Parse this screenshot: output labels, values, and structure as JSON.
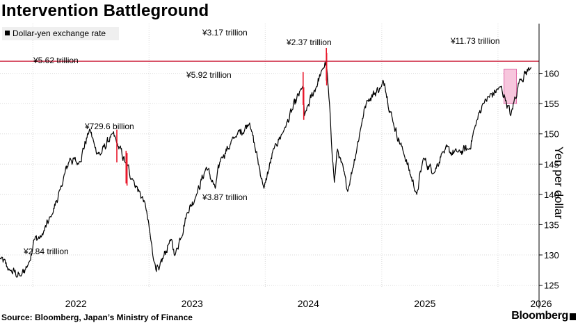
{
  "title": "Intervention Battleground",
  "legend_label": "Dollar-yen exchange rate",
  "source": "Source: Bloomberg, Japan’s Ministry of Finance",
  "brand": "Bloomberg",
  "colors": {
    "line": "#000000",
    "reference_line": "#c8102e",
    "intervention": "#e8192c",
    "highlight_fill": "#f7c6dd",
    "highlight_stroke": "#e06ba8",
    "grid": "#d9d9d9"
  },
  "chart_data": {
    "type": "line",
    "title": "Intervention Battleground",
    "ylabel": "Yen per dollar",
    "ylim": [
      123,
      165
    ],
    "y_ticks": [
      125,
      130,
      135,
      140,
      145,
      150,
      155,
      160
    ],
    "x_tick_labels": [
      "2022",
      "2023",
      "2024",
      "2025",
      "2026"
    ],
    "x_tick_dates": [
      "2022-01-01",
      "2023-01-01",
      "2024-01-01",
      "2025-01-01",
      "2026-01-01"
    ],
    "xlim": [
      "2021-09-20",
      "2026-05-10"
    ],
    "legend": "Dollar-yen exchange rate",
    "legend_position": "top-left",
    "reference_line": {
      "y": 162
    },
    "series": [
      {
        "name": "Dollar-yen exchange rate",
        "x": [
          "2021-09-20",
          "2021-10-20",
          "2021-11-25",
          "2021-12-20",
          "2022-01-04",
          "2022-01-28",
          "2022-03-01",
          "2022-03-28",
          "2022-04-28",
          "2022-05-24",
          "2022-06-29",
          "2022-07-14",
          "2022-08-01",
          "2022-09-07",
          "2022-09-22",
          "2022-10-21",
          "2022-11-11",
          "2022-12-20",
          "2023-01-16",
          "2023-02-01",
          "2023-03-08",
          "2023-03-24",
          "2023-05-01",
          "2023-05-30",
          "2023-06-30",
          "2023-07-28",
          "2023-08-15",
          "2023-09-29",
          "2023-11-13",
          "2023-12-28",
          "2024-01-31",
          "2024-02-28",
          "2024-04-29",
          "2024-05-03",
          "2024-06-30",
          "2024-07-11",
          "2024-08-05",
          "2024-08-15",
          "2024-09-16",
          "2024-10-31",
          "2024-11-15",
          "2024-12-31",
          "2025-01-10",
          "2025-02-05",
          "2025-03-10",
          "2025-04-21",
          "2025-05-12",
          "2025-06-13",
          "2025-07-10",
          "2025-08-29",
          "2025-10-03",
          "2025-10-20",
          "2025-11-14",
          "2026-01-09",
          "2026-01-23",
          "2026-02-10",
          "2026-03-10",
          "2026-04-15"
        ],
        "values": [
          129.5,
          127.5,
          126.5,
          128.8,
          132.5,
          133.0,
          136.5,
          140.8,
          146.0,
          145.0,
          150.8,
          148.0,
          146.5,
          150.0,
          148.5,
          145.0,
          142.5,
          138.5,
          129.0,
          127.5,
          132.5,
          130.0,
          137.0,
          140.0,
          144.5,
          141.0,
          146.0,
          149.5,
          151.8,
          141.0,
          148.0,
          150.5,
          158.0,
          153.0,
          160.8,
          162.0,
          142.0,
          147.5,
          140.5,
          152.0,
          155.5,
          157.8,
          158.3,
          152.0,
          147.0,
          140.0,
          146.0,
          143.5,
          147.0,
          147.0,
          147.5,
          151.0,
          155.0,
          157.8,
          156.0,
          153.0,
          159.0,
          161.0
        ]
      }
    ],
    "intervention_periods": [
      {
        "date": "2022-09-22",
        "amount": "¥2.84 trillion"
      },
      {
        "date": "2022-10-21",
        "amount": "¥5.62 trillion"
      },
      {
        "date": "2022-10-24",
        "amount": "¥729.6 billion"
      },
      {
        "date": "2024-04-29",
        "amount": "¥5.92 trillion"
      },
      {
        "date": "2024-05-01",
        "amount": "¥3.87 trillion"
      },
      {
        "date": "2024-07-11",
        "amount": "¥3.17 trillion"
      },
      {
        "date": "2024-07-12",
        "amount": "¥2.37 trillion"
      }
    ],
    "annotations": [
      {
        "text": "¥5.62 trillion"
      },
      {
        "text": "¥729.6 billion"
      },
      {
        "text": "¥2.84 trillion"
      },
      {
        "text": "¥3.17 trillion"
      },
      {
        "text": "¥2.37 trillion"
      },
      {
        "text": "¥5.92 trillion"
      },
      {
        "text": "¥3.87 trillion"
      },
      {
        "text": "¥11.73 trillion"
      }
    ],
    "highlight_period": {
      "from": "2026-01-20",
      "to": "2026-02-28",
      "y_from": 155,
      "y_to": 160.7
    },
    "grid": true
  }
}
